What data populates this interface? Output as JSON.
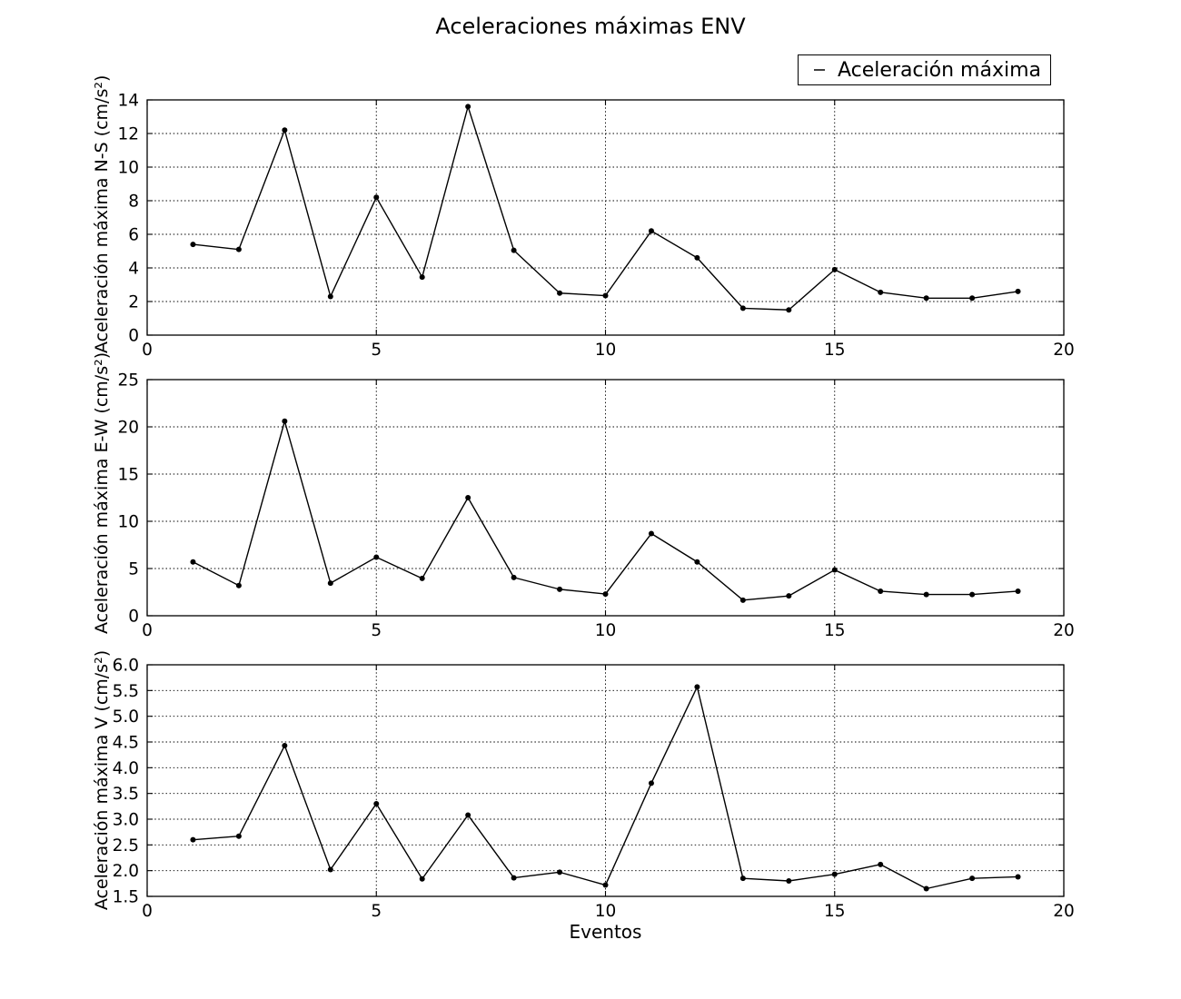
{
  "title": "Aceleraciones máximas ENV",
  "legend": {
    "label": "Aceleración máxima"
  },
  "colors": {
    "background": "#ffffff",
    "line": "#000000",
    "grid": "#000000",
    "text": "#000000"
  },
  "chart_data": [
    {
      "type": "line",
      "ylabel": "Aceleración máxima N-S (cm/s²)",
      "xlabel": "",
      "x": [
        1,
        2,
        3,
        4,
        5,
        6,
        7,
        8,
        9,
        10,
        11,
        12,
        13,
        14,
        15,
        16,
        17,
        18,
        19
      ],
      "series": [
        {
          "name": "Aceleración máxima",
          "values": [
            5.4,
            5.1,
            12.2,
            2.3,
            8.2,
            3.45,
            13.6,
            5.05,
            2.5,
            2.35,
            6.2,
            4.6,
            1.6,
            1.5,
            3.9,
            2.55,
            2.2,
            2.2,
            2.6
          ]
        }
      ],
      "xlim": [
        0,
        20
      ],
      "ylim": [
        0,
        14
      ],
      "xtick_labels": [
        "0",
        "5",
        "10",
        "15",
        "20"
      ],
      "ytick_labels": [
        "0",
        "2",
        "4",
        "6",
        "8",
        "10",
        "12",
        "14"
      ],
      "grid": true,
      "marker": "dot"
    },
    {
      "type": "line",
      "ylabel": "Aceleración máxima E-W (cm/s²)",
      "xlabel": "",
      "x": [
        1,
        2,
        3,
        4,
        5,
        6,
        7,
        8,
        9,
        10,
        11,
        12,
        13,
        14,
        15,
        16,
        17,
        18,
        19
      ],
      "series": [
        {
          "name": "Aceleración máxima",
          "values": [
            5.7,
            3.2,
            20.6,
            3.45,
            6.2,
            3.95,
            12.5,
            4.05,
            2.8,
            2.3,
            8.7,
            5.7,
            1.65,
            2.1,
            4.85,
            2.6,
            2.25,
            2.25,
            2.6
          ]
        }
      ],
      "xlim": [
        0,
        20
      ],
      "ylim": [
        0,
        25
      ],
      "xtick_labels": [
        "0",
        "5",
        "10",
        "15",
        "20"
      ],
      "ytick_labels": [
        "0",
        "5",
        "10",
        "15",
        "20",
        "25"
      ],
      "grid": true,
      "marker": "dot"
    },
    {
      "type": "line",
      "ylabel": "Aceleración máxima V (cm/s²)",
      "xlabel": "Eventos",
      "x": [
        1,
        2,
        3,
        4,
        5,
        6,
        7,
        8,
        9,
        10,
        11,
        12,
        13,
        14,
        15,
        16,
        17,
        18,
        19
      ],
      "series": [
        {
          "name": "Aceleración máxima",
          "values": [
            2.6,
            2.67,
            4.43,
            2.02,
            3.3,
            1.84,
            3.08,
            1.86,
            1.97,
            1.72,
            3.7,
            5.57,
            1.85,
            1.8,
            1.93,
            2.12,
            1.65,
            1.85,
            1.88
          ]
        }
      ],
      "xlim": [
        0,
        20
      ],
      "ylim": [
        1.5,
        6.0
      ],
      "xtick_labels": [
        "0",
        "5",
        "10",
        "15",
        "20"
      ],
      "ytick_labels": [
        "1.5",
        "2.0",
        "2.5",
        "3.0",
        "3.5",
        "4.0",
        "4.5",
        "5.0",
        "5.5",
        "6.0"
      ],
      "grid": true,
      "marker": "dot"
    }
  ]
}
